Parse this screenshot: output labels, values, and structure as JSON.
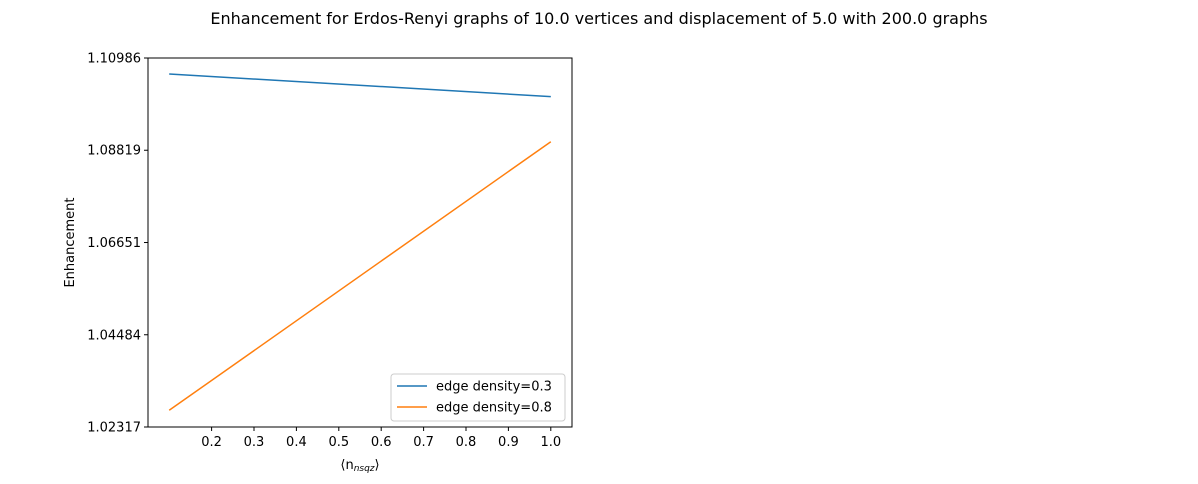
{
  "figure": {
    "title": "Enhancement for Erdos-Renyi graphs of 10.0 vertices and displacement of 5.0 with 200.0 graphs"
  },
  "chart_data": {
    "type": "line",
    "title": "Enhancement for Erdos-Renyi graphs of 10.0 vertices and displacement of 5.0 with 200.0 graphs",
    "xlabel": "⟨n_nsqz⟩",
    "xlabel_parts": {
      "main": "⟨n",
      "sub": "nsqz",
      "close": "⟩"
    },
    "ylabel": "Enhancement",
    "xlim": [
      0.05,
      1.05
    ],
    "ylim": [
      1.02317,
      1.10986
    ],
    "xticks": [
      0.2,
      0.3,
      0.4,
      0.5,
      0.6,
      0.7,
      0.8,
      0.9,
      1.0
    ],
    "xtick_labels": [
      "0.2",
      "0.3",
      "0.4",
      "0.5",
      "0.6",
      "0.7",
      "0.8",
      "0.9",
      "1.0"
    ],
    "yticks": [
      1.02317,
      1.04484,
      1.06651,
      1.08819,
      1.10986
    ],
    "ytick_labels": [
      "1.02317",
      "1.04484",
      "1.06651",
      "1.08819",
      "1.10986"
    ],
    "grid": false,
    "legend": {
      "position": "lower-right"
    },
    "series": [
      {
        "name": "edge density=0.3",
        "color": "#1f77b4",
        "x": [
          0.1,
          1.0
        ],
        "y": [
          1.1061,
          1.1008
        ]
      },
      {
        "name": "edge density=0.8",
        "color": "#ff7f0e",
        "x": [
          0.1,
          1.0
        ],
        "y": [
          1.0271,
          1.0902
        ]
      }
    ]
  }
}
